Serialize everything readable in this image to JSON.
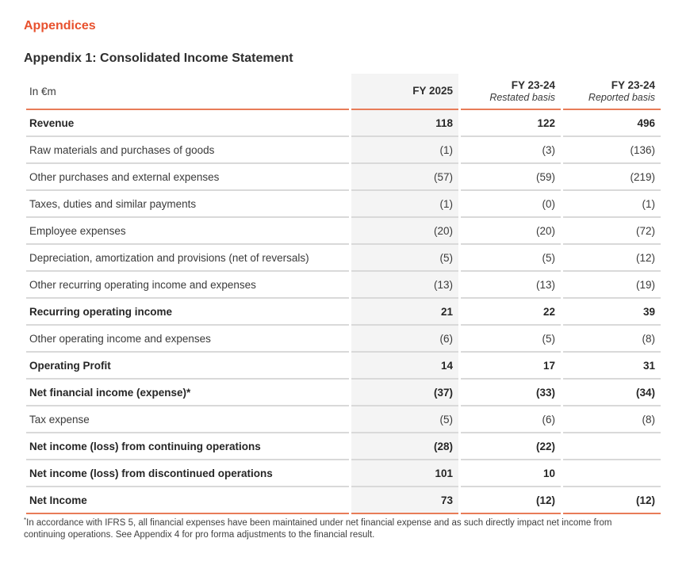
{
  "page": {
    "section_title": "Appendices",
    "heading": "Appendix 1: Consolidated Income Statement"
  },
  "table": {
    "unit_label": "In €m",
    "columns": [
      {
        "label": "FY 2025",
        "sublabel": ""
      },
      {
        "label": "FY 23-24",
        "sublabel": "Restated basis"
      },
      {
        "label": "FY 23-24",
        "sublabel": "Reported basis"
      }
    ],
    "rows": [
      {
        "label": "Revenue",
        "values": [
          "118",
          "122",
          "496"
        ]
      },
      {
        "label": "Raw materials and purchases of goods",
        "values": [
          "(1)",
          "(3)",
          "(136)"
        ]
      },
      {
        "label": "Other purchases and external expenses",
        "values": [
          "(57)",
          "(59)",
          "(219)"
        ]
      },
      {
        "label": "Taxes, duties and similar payments",
        "values": [
          "(1)",
          "(0)",
          "(1)"
        ]
      },
      {
        "label": "Employee expenses",
        "values": [
          "(20)",
          "(20)",
          "(72)"
        ]
      },
      {
        "label": "Depreciation, amortization and provisions (net of reversals)",
        "values": [
          "(5)",
          "(5)",
          "(12)"
        ]
      },
      {
        "label": "Other recurring operating income and expenses",
        "values": [
          "(13)",
          "(13)",
          "(19)"
        ]
      },
      {
        "label": "Recurring operating income",
        "values": [
          "21",
          "22",
          "39"
        ]
      },
      {
        "label": "Other operating income and expenses",
        "values": [
          "(6)",
          "(5)",
          "(8)"
        ]
      },
      {
        "label": "Operating Profit",
        "values": [
          "14",
          "17",
          "31"
        ]
      },
      {
        "label": "Net financial income (expense)*",
        "values": [
          "(37)",
          "(33)",
          "(34)"
        ]
      },
      {
        "label": "Tax expense",
        "values": [
          "(5)",
          "(6)",
          "(8)"
        ]
      },
      {
        "label": "Net income (loss) from continuing operations",
        "values": [
          "(28)",
          "(22)",
          ""
        ]
      },
      {
        "label": "Net income (loss) from discontinued operations",
        "values": [
          "101",
          "10",
          ""
        ]
      },
      {
        "label": "Net Income",
        "values": [
          "73",
          "(12)",
          "(12)"
        ]
      }
    ]
  },
  "footnote": {
    "marker": "*",
    "text": "In accordance with IFRS 5, all financial expenses have been maintained under net financial expense and as such directly impact net income from continuing operations. See Appendix 4 for pro forma adjustments to the financial result."
  },
  "colors": {
    "accent_orange": "#e8512e",
    "rule_orange": "#e87c58",
    "divider_gray": "#d9d9d9",
    "highlight_column_bg": "#f4f4f4",
    "text_dark": "#2e2e2e"
  }
}
